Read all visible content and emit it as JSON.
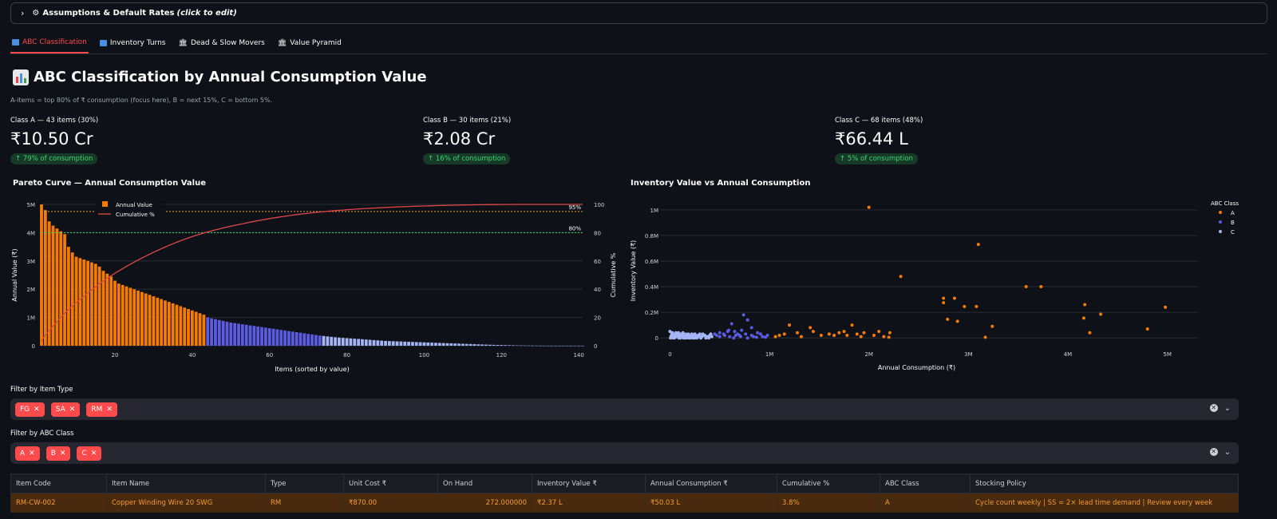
{
  "expander": {
    "label": "Assumptions & Default Rates",
    "hint": "(click to edit)"
  },
  "tabs": [
    {
      "label": "ABC Classification",
      "icon": "abc-icon",
      "active": true
    },
    {
      "label": "Inventory Turns",
      "icon": "turns-icon",
      "active": false
    },
    {
      "label": "Dead & Slow Movers",
      "icon": "bank-icon",
      "active": false
    },
    {
      "label": "Value Pyramid",
      "icon": "bank-icon",
      "active": false
    }
  ],
  "page": {
    "title": "ABC Classification by Annual Consumption Value",
    "caption": "A-items = top 80% of ₹ consumption (focus here), B = next 15%, C = bottom 5%."
  },
  "metrics": [
    {
      "label": "Class A — 43 items (30%)",
      "value": "₹10.50 Cr",
      "delta": "↑ 79% of consumption"
    },
    {
      "label": "Class B — 30 items (21%)",
      "value": "₹2.08 Cr",
      "delta": "↑ 16% of consumption"
    },
    {
      "label": "Class C — 68 items (48%)",
      "value": "₹66.44 L",
      "delta": "↑ 5% of consumption"
    }
  ],
  "colors": {
    "classA": "#f57c00",
    "classB": "#5b5ce2",
    "classC": "#a5b4f5",
    "cumulative": "#e04848",
    "accent": "#ff4b4b"
  },
  "chart_data": [
    {
      "type": "bar",
      "title": "Pareto Curve — Annual Consumption Value",
      "xlabel": "Items (sorted by value)",
      "ylabel": "Annual Value (₹)",
      "y2label": "Cumulative %",
      "legend": [
        "Annual Value",
        "Cumulative %"
      ],
      "x_ticks": [
        20,
        40,
        60,
        80,
        100,
        120,
        140
      ],
      "y_ticks": [
        "0",
        "1M",
        "2M",
        "3M",
        "4M",
        "5M"
      ],
      "y2_ticks": [
        0,
        20,
        40,
        60,
        80,
        100
      ],
      "ylim": [
        0,
        5000000
      ],
      "y2lim": [
        0,
        100
      ],
      "reference_lines": [
        {
          "label": "80%",
          "value": 80
        },
        {
          "label": "95%",
          "value": 95
        }
      ],
      "class_counts": {
        "A": 43,
        "B": 30,
        "C": 68
      },
      "values": [
        5000000,
        4800000,
        4400000,
        4250000,
        4150000,
        4050000,
        3950000,
        3500000,
        3300000,
        3150000,
        3100000,
        3050000,
        3000000,
        2950000,
        2900000,
        2800000,
        2650000,
        2550000,
        2450000,
        2300000,
        2200000,
        2150000,
        2100000,
        2050000,
        2000000,
        1950000,
        1900000,
        1850000,
        1800000,
        1750000,
        1700000,
        1650000,
        1600000,
        1550000,
        1500000,
        1450000,
        1400000,
        1350000,
        1300000,
        1250000,
        1200000,
        1150000,
        1100000,
        1000000,
        970000,
        940000,
        910000,
        880000,
        850000,
        820000,
        800000,
        780000,
        760000,
        740000,
        720000,
        700000,
        680000,
        660000,
        640000,
        620000,
        600000,
        580000,
        560000,
        540000,
        520000,
        500000,
        480000,
        460000,
        440000,
        420000,
        400000,
        380000,
        360000,
        345000,
        330000,
        315000,
        300000,
        290000,
        280000,
        270000,
        260000,
        250000,
        240000,
        230000,
        220000,
        210000,
        200000,
        190000,
        180000,
        170000,
        165000,
        160000,
        155000,
        150000,
        145000,
        140000,
        135000,
        130000,
        125000,
        120000,
        115000,
        110000,
        105000,
        100000,
        95000,
        90000,
        85000,
        80000,
        75000,
        70000,
        65000,
        60000,
        55000,
        50000,
        45000,
        40000,
        36000,
        32000,
        28000,
        25000,
        22000,
        19000,
        16000,
        13000,
        10000,
        8000,
        6000,
        4000,
        3000,
        2000,
        1000,
        800,
        600,
        400,
        300,
        200,
        150,
        100,
        80,
        60,
        40
      ]
    },
    {
      "type": "scatter",
      "title": "Inventory Value vs Annual Consumption",
      "xlabel": "Annual Consumption (₹)",
      "ylabel": "Inventory Value (₹)",
      "x_ticks": [
        "0",
        "1M",
        "2M",
        "3M",
        "4M",
        "5M"
      ],
      "y_ticks": [
        "0",
        "0.2M",
        "0.4M",
        "0.6M",
        "0.8M",
        "1M"
      ],
      "xlim": [
        -100000,
        5300000
      ],
      "ylim": [
        -30000,
        1080000
      ],
      "legend_title": "ABC Class",
      "series": [
        {
          "name": "A",
          "points": [
            [
              2000000,
              1020000
            ],
            [
              3100000,
              730000
            ],
            [
              2320000,
              480000
            ],
            [
              3580000,
              400000
            ],
            [
              3730000,
              400000
            ],
            [
              2750000,
              310000
            ],
            [
              2860000,
              310000
            ],
            [
              4170000,
              260000
            ],
            [
              2750000,
              275000
            ],
            [
              2960000,
              245000
            ],
            [
              3080000,
              245000
            ],
            [
              4980000,
              240000
            ],
            [
              4330000,
              185000
            ],
            [
              4160000,
              155000
            ],
            [
              2890000,
              130000
            ],
            [
              2790000,
              145000
            ],
            [
              4800000,
              70000
            ],
            [
              3240000,
              90000
            ],
            [
              4220000,
              40000
            ],
            [
              3170000,
              5000
            ],
            [
              1830000,
              100000
            ],
            [
              1410000,
              80000
            ],
            [
              1200000,
              100000
            ],
            [
              1440000,
              50000
            ],
            [
              1600000,
              30000
            ],
            [
              1700000,
              40000
            ],
            [
              1750000,
              50000
            ],
            [
              1950000,
              40000
            ],
            [
              2100000,
              50000
            ],
            [
              2210000,
              40000
            ],
            [
              1280000,
              40000
            ],
            [
              1320000,
              10000
            ],
            [
              1920000,
              10000
            ],
            [
              2150000,
              10000
            ],
            [
              2200000,
              5000
            ],
            [
              1100000,
              20000
            ],
            [
              1150000,
              30000
            ],
            [
              1520000,
              20000
            ],
            [
              1650000,
              20000
            ],
            [
              1880000,
              30000
            ],
            [
              2050000,
              20000
            ],
            [
              1060000,
              10000
            ],
            [
              1780000,
              20000
            ]
          ]
        },
        {
          "name": "B",
          "points": [
            [
              740000,
              180000
            ],
            [
              780000,
              140000
            ],
            [
              620000,
              110000
            ],
            [
              820000,
              80000
            ],
            [
              720000,
              60000
            ],
            [
              650000,
              50000
            ],
            [
              590000,
              60000
            ],
            [
              880000,
              40000
            ],
            [
              500000,
              40000
            ],
            [
              540000,
              30000
            ],
            [
              700000,
              20000
            ],
            [
              910000,
              30000
            ],
            [
              660000,
              20000
            ],
            [
              760000,
              30000
            ],
            [
              820000,
              20000
            ],
            [
              550000,
              20000
            ],
            [
              600000,
              10000
            ],
            [
              470000,
              20000
            ],
            [
              930000,
              10000
            ],
            [
              870000,
              5000
            ],
            [
              710000,
              10000
            ],
            [
              640000,
              0
            ],
            [
              780000,
              0
            ],
            [
              980000,
              20000
            ],
            [
              500000,
              10000
            ],
            [
              450000,
              30000
            ],
            [
              580000,
              50000
            ],
            [
              680000,
              30000
            ],
            [
              840000,
              10000
            ],
            [
              960000,
              5000
            ]
          ]
        },
        {
          "name": "C",
          "points": [
            [
              0,
              50000
            ],
            [
              20000,
              30000
            ],
            [
              40000,
              20000
            ],
            [
              60000,
              40000
            ],
            [
              80000,
              10000
            ],
            [
              100000,
              30000
            ],
            [
              120000,
              20000
            ],
            [
              140000,
              10000
            ],
            [
              160000,
              30000
            ],
            [
              180000,
              20000
            ],
            [
              200000,
              10000
            ],
            [
              220000,
              30000
            ],
            [
              240000,
              20000
            ],
            [
              260000,
              10000
            ],
            [
              280000,
              20000
            ],
            [
              300000,
              30000
            ],
            [
              320000,
              10000
            ],
            [
              340000,
              20000
            ],
            [
              360000,
              0
            ],
            [
              380000,
              10000
            ],
            [
              400000,
              20000
            ],
            [
              420000,
              10000
            ],
            [
              10000,
              10000
            ],
            [
              30000,
              0
            ],
            [
              50000,
              20000
            ],
            [
              70000,
              30000
            ],
            [
              90000,
              0
            ],
            [
              110000,
              10000
            ],
            [
              130000,
              40000
            ],
            [
              150000,
              0
            ],
            [
              170000,
              10000
            ],
            [
              190000,
              0
            ],
            [
              210000,
              20000
            ],
            [
              230000,
              0
            ],
            [
              250000,
              30000
            ],
            [
              270000,
              0
            ],
            [
              290000,
              10000
            ],
            [
              310000,
              0
            ],
            [
              330000,
              30000
            ],
            [
              350000,
              20000
            ],
            [
              370000,
              10000
            ],
            [
              390000,
              0
            ],
            [
              410000,
              30000
            ],
            [
              5000,
              0
            ],
            [
              15000,
              20000
            ],
            [
              25000,
              40000
            ],
            [
              35000,
              10000
            ],
            [
              45000,
              0
            ],
            [
              55000,
              30000
            ],
            [
              65000,
              10000
            ],
            [
              75000,
              20000
            ],
            [
              85000,
              40000
            ],
            [
              95000,
              20000
            ],
            [
              105000,
              0
            ],
            [
              115000,
              30000
            ],
            [
              125000,
              10000
            ],
            [
              135000,
              0
            ],
            [
              145000,
              20000
            ],
            [
              155000,
              10000
            ],
            [
              165000,
              0
            ],
            [
              175000,
              20000
            ],
            [
              185000,
              30000
            ],
            [
              195000,
              10000
            ],
            [
              205000,
              0
            ],
            [
              215000,
              10000
            ],
            [
              225000,
              20000
            ],
            [
              235000,
              10000
            ],
            [
              245000,
              0
            ]
          ]
        }
      ]
    }
  ],
  "filters": {
    "item_type": {
      "label": "Filter by Item Type",
      "chips": [
        "FG",
        "SA",
        "RM"
      ]
    },
    "abc_class": {
      "label": "Filter by ABC Class",
      "chips": [
        "A",
        "B",
        "C"
      ]
    }
  },
  "table": {
    "columns": [
      "Item Code",
      "Item Name",
      "Type",
      "Unit Cost ₹",
      "On Hand",
      "Inventory Value ₹",
      "Annual Consumption ₹",
      "Cumulative %",
      "ABC Class",
      "Stocking Policy"
    ],
    "rows": [
      [
        "RM-CW-002",
        "Copper Winding Wire 20 SWG",
        "RM",
        "₹870.00",
        "272.000000",
        "₹2.37 L",
        "₹50.03 L",
        "3.8%",
        "A",
        "Cycle count weekly | SS = 2× lead time demand | Review every week"
      ]
    ]
  }
}
